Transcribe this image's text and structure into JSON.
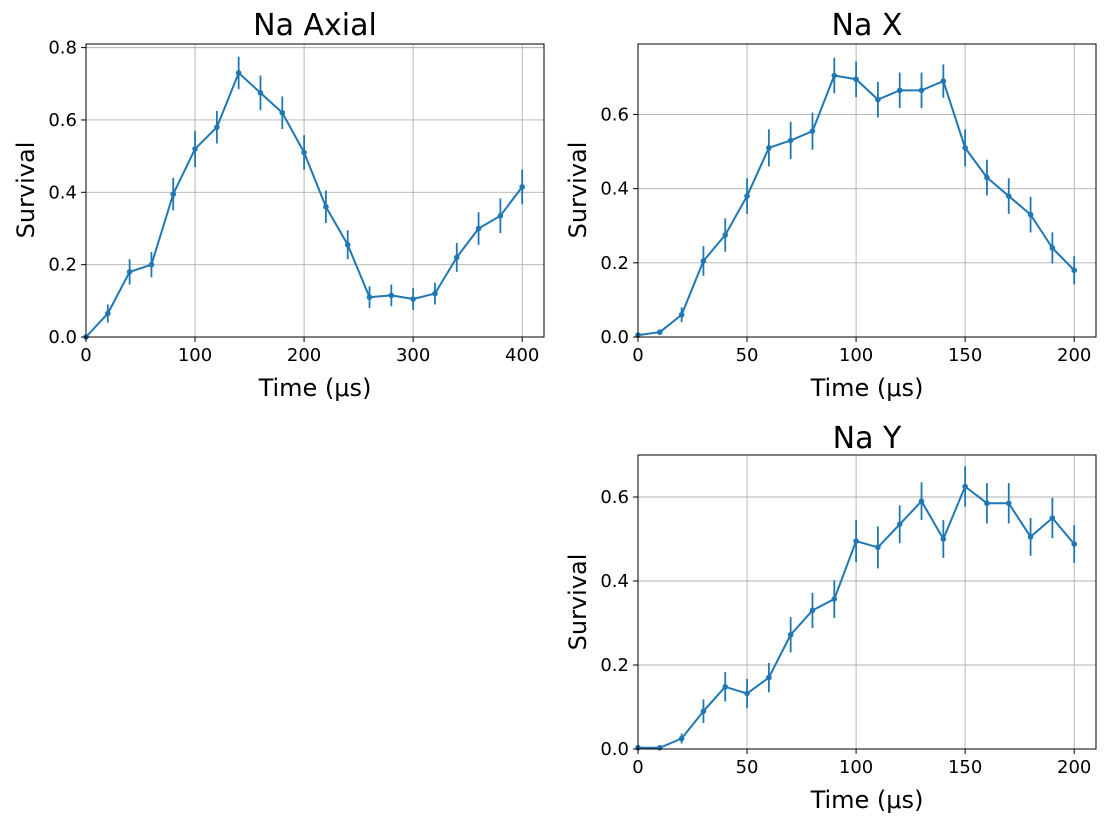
{
  "colors": {
    "series": "#1f77b4",
    "grid": "#b0b0b0"
  },
  "chart_data": [
    {
      "type": "line",
      "title": "Na Axial",
      "xlabel": "Time (μs)",
      "ylabel": "Survival",
      "xlim": [
        0,
        420
      ],
      "ylim": [
        0,
        0.81
      ],
      "xticks": [
        0,
        100,
        200,
        300,
        400
      ],
      "xtick_labels": [
        "0",
        "100",
        "200",
        "300",
        "400"
      ],
      "yticks": [
        0,
        0.2,
        0.4,
        0.6,
        0.8
      ],
      "ytick_labels": [
        "0.0",
        "0.2",
        "0.4",
        "0.6",
        "0.8"
      ],
      "grid": true,
      "series": [
        {
          "x": [
            0,
            20,
            40,
            60,
            80,
            100,
            120,
            140,
            160,
            180,
            200,
            220,
            240,
            260,
            280,
            300,
            320,
            340,
            360,
            380,
            400
          ],
          "y": [
            0.0,
            0.065,
            0.18,
            0.2,
            0.395,
            0.52,
            0.58,
            0.73,
            0.675,
            0.62,
            0.51,
            0.36,
            0.255,
            0.11,
            0.115,
            0.105,
            0.12,
            0.22,
            0.3,
            0.335,
            0.415
          ],
          "yerr": [
            0.002,
            0.025,
            0.035,
            0.035,
            0.045,
            0.05,
            0.045,
            0.045,
            0.048,
            0.045,
            0.048,
            0.045,
            0.04,
            0.03,
            0.03,
            0.03,
            0.03,
            0.04,
            0.045,
            0.048,
            0.048
          ]
        }
      ]
    },
    {
      "type": "line",
      "title": "Na X",
      "xlabel": "Time (μs)",
      "ylabel": "Survival",
      "xlim": [
        0,
        210
      ],
      "ylim": [
        0,
        0.79
      ],
      "xticks": [
        0,
        50,
        100,
        150,
        200
      ],
      "xtick_labels": [
        "0",
        "50",
        "100",
        "150",
        "200"
      ],
      "yticks": [
        0,
        0.2,
        0.4,
        0.6
      ],
      "ytick_labels": [
        "0.0",
        "0.2",
        "0.4",
        "0.6"
      ],
      "grid": true,
      "series": [
        {
          "x": [
            0,
            10,
            20,
            30,
            40,
            50,
            60,
            70,
            80,
            90,
            100,
            110,
            120,
            130,
            140,
            150,
            160,
            170,
            180,
            190,
            200
          ],
          "y": [
            0.005,
            0.013,
            0.06,
            0.205,
            0.275,
            0.38,
            0.51,
            0.53,
            0.555,
            0.705,
            0.695,
            0.64,
            0.665,
            0.665,
            0.69,
            0.51,
            0.43,
            0.38,
            0.33,
            0.24,
            0.18
          ],
          "yerr": [
            0.002,
            0.006,
            0.02,
            0.04,
            0.045,
            0.048,
            0.05,
            0.05,
            0.05,
            0.048,
            0.048,
            0.048,
            0.048,
            0.048,
            0.045,
            0.05,
            0.048,
            0.048,
            0.048,
            0.042,
            0.038
          ]
        }
      ]
    },
    {
      "type": "line",
      "title": "Na Y",
      "xlabel": "Time (μs)",
      "ylabel": "Survival",
      "xlim": [
        0,
        210
      ],
      "ylim": [
        0,
        0.7
      ],
      "xticks": [
        0,
        50,
        100,
        150,
        200
      ],
      "xtick_labels": [
        "0",
        "50",
        "100",
        "150",
        "200"
      ],
      "yticks": [
        0,
        0.2,
        0.4,
        0.6
      ],
      "ytick_labels": [
        "0.0",
        "0.2",
        "0.4",
        "0.6"
      ],
      "grid": true,
      "series": [
        {
          "x": [
            0,
            10,
            20,
            30,
            40,
            50,
            60,
            70,
            80,
            90,
            100,
            110,
            120,
            130,
            140,
            150,
            160,
            170,
            180,
            190,
            200
          ],
          "y": [
            0.003,
            0.003,
            0.025,
            0.09,
            0.148,
            0.132,
            0.17,
            0.272,
            0.33,
            0.357,
            0.495,
            0.48,
            0.535,
            0.59,
            0.5,
            0.625,
            0.585,
            0.585,
            0.505,
            0.55,
            0.488
          ],
          "yerr": [
            0.002,
            0.002,
            0.012,
            0.028,
            0.035,
            0.035,
            0.035,
            0.042,
            0.042,
            0.045,
            0.05,
            0.05,
            0.045,
            0.045,
            0.045,
            0.048,
            0.048,
            0.048,
            0.045,
            0.048,
            0.045
          ]
        }
      ]
    }
  ]
}
